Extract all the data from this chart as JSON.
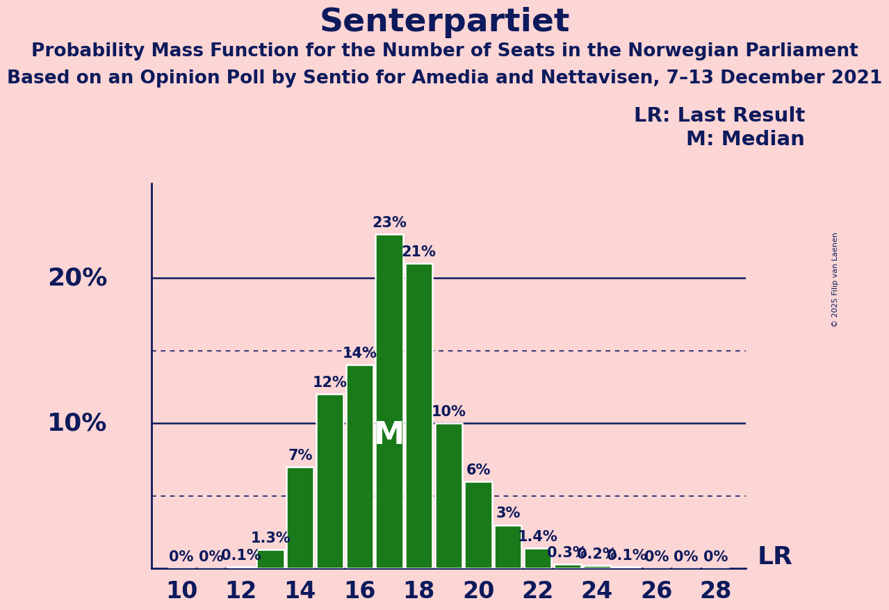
{
  "title": "Senterpartiet",
  "subtitle1": "Probability Mass Function for the Number of Seats in the Norwegian Parliament",
  "subtitle2": "Based on an Opinion Poll by Sentio for Amedia and Nettavisen, 7–13 December 2021",
  "legend_lr": "LR: Last Result",
  "legend_m": "M: Median",
  "copyright": "© 2025 Filip van Laenen",
  "background_color": "#fcd5d5",
  "bar_color": "#1a7a1a",
  "bar_edge_color": "#ffffff",
  "title_color": "#0d1a5c",
  "text_color": "#0d1a5c",
  "seats": [
    10,
    11,
    12,
    13,
    14,
    15,
    16,
    17,
    18,
    19,
    20,
    21,
    22,
    23,
    24,
    25,
    26,
    27,
    28
  ],
  "probabilities": [
    0.0,
    0.0,
    0.001,
    0.013,
    0.07,
    0.12,
    0.14,
    0.23,
    0.21,
    0.1,
    0.06,
    0.03,
    0.014,
    0.003,
    0.002,
    0.001,
    0.0,
    0.0,
    0.0
  ],
  "labels": [
    "0%",
    "0%",
    "0.1%",
    "1.3%",
    "7%",
    "12%",
    "14%",
    "23%",
    "21%",
    "10%",
    "6%",
    "3%",
    "1.4%",
    "0.3%",
    "0.2%",
    "0.1%",
    "0%",
    "0%",
    "0%"
  ],
  "median_seat": 17,
  "lr_seat": 28,
  "ylim_max": 0.265,
  "solid_hlines": [
    0.1,
    0.2
  ],
  "dotted_hlines": [
    0.05,
    0.15
  ],
  "xlabel_seats": [
    10,
    12,
    14,
    16,
    18,
    20,
    22,
    24,
    26,
    28
  ],
  "title_fontsize": 34,
  "subtitle_fontsize": 19,
  "axis_label_fontsize": 24,
  "bar_label_fontsize": 15,
  "legend_fontsize": 21,
  "lr_fontsize": 26,
  "ylabel_fontsize": 26
}
